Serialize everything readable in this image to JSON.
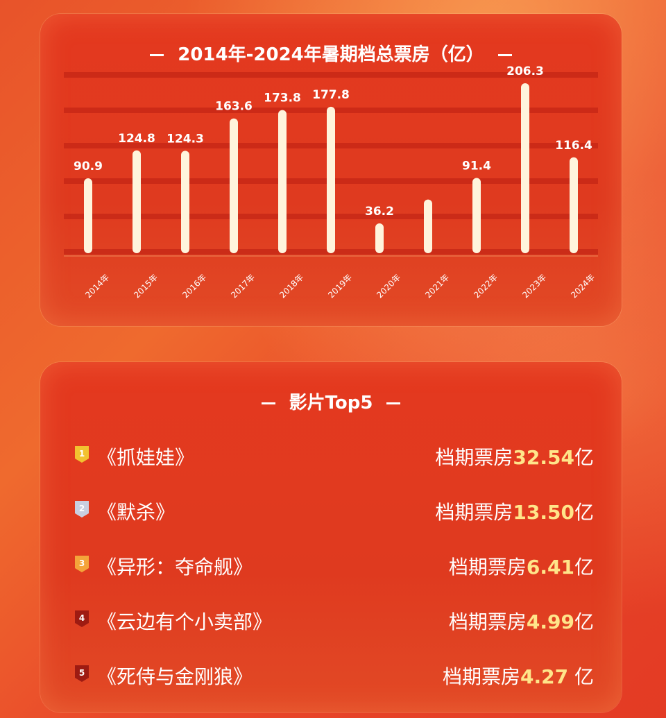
{
  "chart_data": {
    "type": "bar",
    "title": "2014年-2024年暑期档总票房（亿）",
    "categories": [
      "2014年",
      "2015年",
      "2016年",
      "2017年",
      "2018年",
      "2019年",
      "2020年",
      "2021年",
      "2022年",
      "2023年",
      "2024年"
    ],
    "values": [
      90.9,
      124.8,
      124.3,
      163.6,
      173.8,
      177.8,
      36.2,
      null,
      91.4,
      206.3,
      116.4
    ],
    "data_labels": [
      "90.9",
      "124.8",
      "124.3",
      "163.6",
      "173.8",
      "177.8",
      "36.2",
      "",
      "91.4",
      "206.3",
      "116.4"
    ],
    "ylim": [
      0,
      240
    ],
    "grid": true,
    "bar_color": "#fff4dc",
    "label_color": "#ffffff"
  },
  "top5": {
    "title": "影片Top5",
    "items": [
      {
        "rank": "1",
        "title": "《抓娃娃》",
        "prefix": "档期票房",
        "value": "32.54",
        "unit": "亿",
        "badge_color": "#f2c230"
      },
      {
        "rank": "2",
        "title": "《默杀》",
        "prefix": "档期票房",
        "value": "13.50",
        "unit": "亿",
        "badge_color": "#c9cfe0"
      },
      {
        "rank": "3",
        "title": "《异形：夺命舰》",
        "prefix": "档期票房",
        "value": "6.41",
        "unit": "亿",
        "badge_color": "#f4a43a"
      },
      {
        "rank": "4",
        "title": "《云边有个小卖部》",
        "prefix": "档期票房",
        "value": "4.99",
        "unit": "亿",
        "badge_color": "#9e1b12"
      },
      {
        "rank": "5",
        "title": "《死侍与金刚狼》",
        "prefix": "档期票房",
        "value": "4.27",
        "unit": " 亿",
        "badge_color": "#9e1b12"
      }
    ]
  }
}
